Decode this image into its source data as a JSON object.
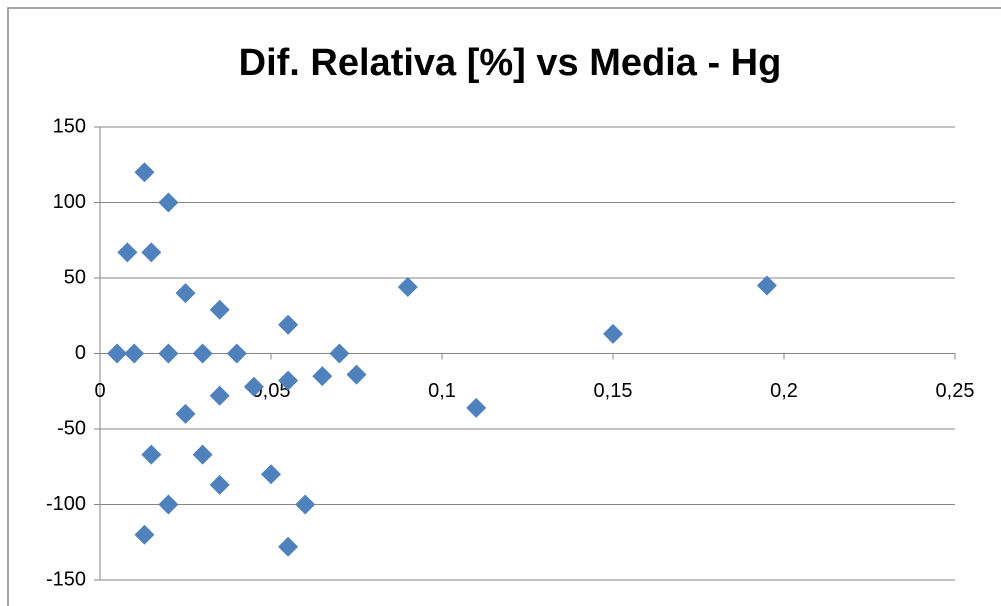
{
  "chart_data": {
    "type": "scatter",
    "title": "Dif. Relativa [%] vs Media - Hg",
    "x": [
      0.005,
      0.008,
      0.01,
      0.013,
      0.015,
      0.02,
      0.02,
      0.025,
      0.03,
      0.035,
      0.04,
      0.045,
      0.055,
      0.055,
      0.065,
      0.07,
      0.075,
      0.09,
      0.11,
      0.15,
      0.195,
      0.025,
      0.035,
      0.015,
      0.03,
      0.035,
      0.02,
      0.013,
      0.05,
      0.06,
      0.055
    ],
    "values": [
      0,
      67,
      0,
      120,
      67,
      100,
      0,
      40,
      0,
      29,
      0,
      -22,
      19,
      -18,
      -15,
      0,
      -14,
      44,
      -36,
      13,
      45,
      -40,
      -28,
      -67,
      -67,
      -87,
      -100,
      -120,
      -80,
      -100,
      -128
    ],
    "color": "#4f81bd",
    "xlim": [
      0,
      0.25
    ],
    "xticks": [
      0,
      {
        "value": 0.05,
        "label": "0,05"
      },
      {
        "value": 0.1,
        "label": "0,1"
      },
      {
        "value": 0.15,
        "label": "0,15"
      },
      {
        "value": 0.2,
        "label": "0,2"
      },
      {
        "value": 0.25,
        "label": "0,25"
      }
    ],
    "ylim": [
      -150,
      150
    ],
    "yticks": [
      -150,
      -100,
      -50,
      0,
      50,
      100,
      150
    ],
    "grid": true
  }
}
